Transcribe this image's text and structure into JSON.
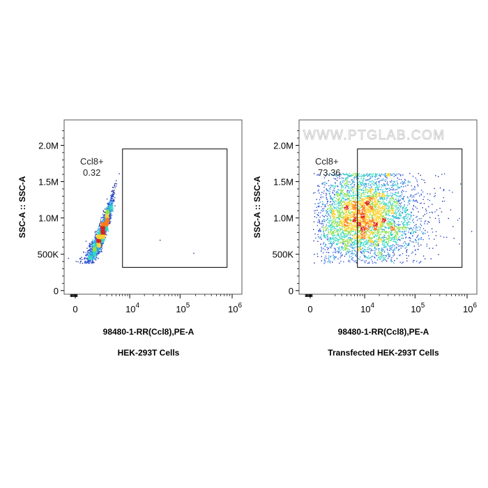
{
  "watermark": "WWW.PTGLAB.COM",
  "density_palette": [
    "#1e2c9c",
    "#2d54d8",
    "#2f9fe0",
    "#2fd6c2",
    "#8be04a",
    "#ffd12a",
    "#ff7a1a",
    "#e0201a"
  ],
  "chart_data": [
    {
      "type": "scatter",
      "title": "HEK-293T Cells",
      "xlabel": "98480-1-RR(Ccl8),PE-A",
      "ylabel": "SSC-A :: SSC-A",
      "x_scale": "biexponential",
      "x_ticks": [
        {
          "value": 0,
          "base": "0",
          "exp": ""
        },
        {
          "value": 10000,
          "base": "10",
          "exp": "4"
        },
        {
          "value": 100000,
          "base": "10",
          "exp": "5"
        },
        {
          "value": 1000000,
          "base": "10",
          "exp": "6"
        }
      ],
      "y_ticks": [
        {
          "value": 0,
          "label": "0"
        },
        {
          "value": 500000,
          "label": "500K"
        },
        {
          "value": 1000000,
          "label": "1.0M"
        },
        {
          "value": 1500000,
          "label": "1.5M"
        },
        {
          "value": 2000000,
          "label": "2.0M"
        }
      ],
      "ylim": [
        -50000,
        2350000
      ],
      "gate": {
        "name": "Ccl8+",
        "value": "0.32",
        "x_range": [
          7000,
          800000
        ],
        "y_range": [
          320000,
          1950000
        ]
      },
      "populations": [
        {
          "x_center": 2200,
          "x_spread": 900,
          "y_center": 800000,
          "y_spread": 500000,
          "y_x_slope": 280,
          "count": 2600,
          "shape": "diagonal"
        }
      ],
      "outliers": [
        {
          "x": 40000,
          "y": 700000
        },
        {
          "x": 180000,
          "y": 520000
        }
      ]
    },
    {
      "type": "scatter",
      "title": "Transfected HEK-293T Cells",
      "xlabel": "98480-1-RR(Ccl8),PE-A",
      "ylabel": "SSC-A :: SSC-A",
      "x_scale": "biexponential",
      "x_ticks": [
        {
          "value": 0,
          "base": "0",
          "exp": ""
        },
        {
          "value": 10000,
          "base": "10",
          "exp": "4"
        },
        {
          "value": 100000,
          "base": "10",
          "exp": "5"
        },
        {
          "value": 1000000,
          "base": "10",
          "exp": "6"
        }
      ],
      "y_ticks": [
        {
          "value": 0,
          "label": "0"
        },
        {
          "value": 500000,
          "label": "500K"
        },
        {
          "value": 1000000,
          "label": "1.0M"
        },
        {
          "value": 1500000,
          "label": "1.5M"
        },
        {
          "value": 2000000,
          "label": "2.0M"
        }
      ],
      "ylim": [
        -50000,
        2350000
      ],
      "gate": {
        "name": "Ccl8+",
        "value": "73.36",
        "x_range": [
          7000,
          800000
        ],
        "y_range": [
          320000,
          1950000
        ]
      },
      "populations": [
        {
          "x_center": 10000,
          "x_spread_log": 0.55,
          "y_center": 1000000,
          "y_spread": 330000,
          "count": 4500,
          "shape": "cloud",
          "y_max": 1620000
        }
      ],
      "outliers": [
        {
          "x": 700000,
          "y": 650000
        },
        {
          "x": 300000,
          "y": 1420000
        }
      ]
    }
  ]
}
